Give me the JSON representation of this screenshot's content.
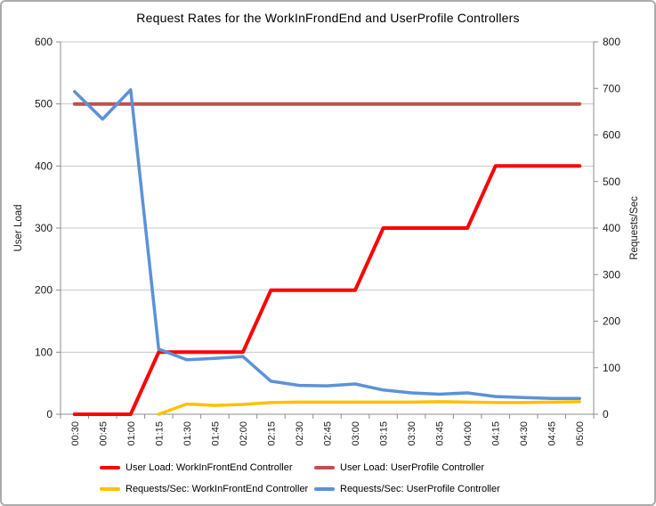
{
  "window": {
    "background": "#ffffff",
    "border_color": "#ababab"
  },
  "chart_data": {
    "type": "line",
    "title": "Request Rates for the WorkInFrondEnd and UserProfile Controllers",
    "categories": [
      "00:30",
      "00:45",
      "01:00",
      "01:15",
      "01:30",
      "01:45",
      "02:00",
      "02:15",
      "02:30",
      "02:45",
      "03:00",
      "03:15",
      "03:30",
      "03:45",
      "04:00",
      "04:15",
      "04:30",
      "04:45",
      "05:00"
    ],
    "axes": {
      "left": {
        "title": "User Load",
        "min": 0,
        "max": 600,
        "step": 100,
        "tick_labels": [
          "600",
          "500",
          "400",
          "300",
          "200",
          "100",
          "0"
        ]
      },
      "right": {
        "title": "Requests/Sec",
        "min": 0,
        "max": 800,
        "step": 100,
        "tick_labels": [
          "800",
          "700",
          "600",
          "500",
          "400",
          "300",
          "200",
          "100",
          "0"
        ]
      }
    },
    "grid": {
      "horizontal": true,
      "color": "#c8c8c8",
      "axis_color": "#8c8c8c"
    },
    "legend_position": "bottom",
    "series": [
      {
        "name": "User Load: WorkInFrontEnd Controller",
        "axis": "left",
        "color": "#ff0000",
        "stroke_width": 4,
        "values": [
          0,
          0,
          0,
          100,
          100,
          100,
          100,
          200,
          200,
          200,
          200,
          300,
          300,
          300,
          300,
          400,
          400,
          400,
          400
        ]
      },
      {
        "name": "User Load: UserProfile Controller",
        "axis": "left",
        "color": "#c0504d",
        "stroke_width": 4,
        "values": [
          500,
          500,
          500,
          500,
          500,
          500,
          500,
          500,
          500,
          500,
          500,
          500,
          500,
          500,
          500,
          500,
          500,
          500,
          500
        ]
      },
      {
        "name": "Requests/Sec: WorkInFrontEnd Controller",
        "axis": "right",
        "color": "#ffc000",
        "stroke_width": 3.5,
        "values": [
          null,
          null,
          null,
          0,
          22,
          19,
          21,
          25,
          26,
          26,
          26,
          26,
          26,
          27,
          26,
          25,
          25,
          26,
          27
        ]
      },
      {
        "name": "Requests/Sec: UserProfile Controller",
        "axis": "right",
        "color": "#5b92d8",
        "stroke_width": 3.5,
        "values": [
          693,
          634,
          697,
          140,
          117,
          120,
          124,
          71,
          62,
          61,
          65,
          52,
          46,
          43,
          46,
          38,
          36,
          34,
          34
        ]
      }
    ],
    "legend": {
      "rows": [
        [
          0,
          1
        ],
        [
          2,
          3
        ]
      ]
    }
  }
}
